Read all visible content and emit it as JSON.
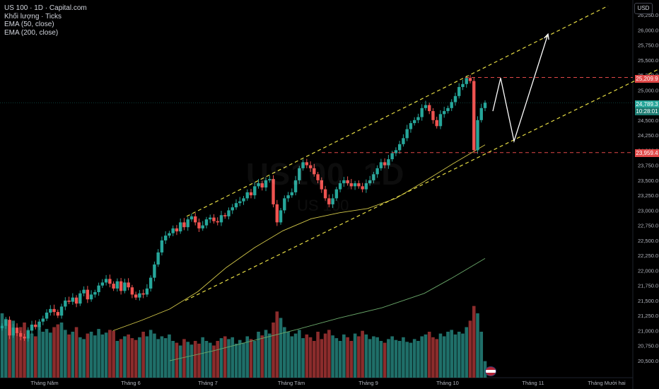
{
  "legend": {
    "symbol_line": "US 100 · 1D · Capital.com",
    "volume_line": "Khối lượng · Ticks",
    "ema50_line": "EMA (50, close)",
    "ema200_line": "EMA (200, close)"
  },
  "currency": "USD",
  "watermark": {
    "symbol": "US100, 1D",
    "name": "US 100"
  },
  "colors": {
    "up": "#26a69a",
    "down": "#ef5350",
    "ema50": "#d4c94a",
    "ema200": "#6aa86a",
    "channel": "#e6dc44",
    "level": "#e04848",
    "projection": "#ffffff"
  },
  "price_labels": {
    "upper_level": "25,209.9",
    "current": "24,789.3",
    "countdown": "10:28:01",
    "lower_level": "23,959.4"
  },
  "chart_data": {
    "type": "candlestick",
    "y_axis_ticks": [
      "20,500.0",
      "20,750.0",
      "21,000.0",
      "21,250.0",
      "21,500.0",
      "21,750.0",
      "22,000.0",
      "22,250.0",
      "22,500.0",
      "22,750.0",
      "23,000.0",
      "23,250.0",
      "23,500.0",
      "23,750.0",
      "24,000.0",
      "24,250.0",
      "24,500.0",
      "24,750.0",
      "25,000.0",
      "25,250.0",
      "25,500.0",
      "25,750.0",
      "26,000.0",
      "26,250.0"
    ],
    "x_axis_ticks": [
      "Tháng Năm",
      "Tháng 6",
      "Tháng 7",
      "Tháng Tám",
      "Tháng 9",
      "Tháng 10",
      "Tháng 11",
      "Tháng Mười hai"
    ],
    "ylim": [
      20400,
      26400
    ],
    "levels": [
      25209.9,
      23959.4
    ],
    "current_price": 24789.3,
    "closes": [
      21080,
      21180,
      20920,
      21050,
      20960,
      20900,
      20870,
      21000,
      21100,
      21060,
      21150,
      21200,
      21300,
      21360,
      21310,
      21250,
      21400,
      21500,
      21480,
      21550,
      21450,
      21620,
      21680,
      21520,
      21600,
      21640,
      21750,
      21800,
      21860,
      21780,
      21700,
      21820,
      21660,
      21800,
      21720,
      21600,
      21550,
      21620,
      21600,
      21700,
      21880,
      22100,
      22300,
      22500,
      22580,
      22620,
      22700,
      22650,
      22800,
      22720,
      22850,
      22900,
      22800,
      22700,
      22750,
      22850,
      22880,
      22820,
      22800,
      22920,
      22900,
      23000,
      23050,
      23120,
      23150,
      23200,
      23300,
      23250,
      23400,
      23450,
      23380,
      23500,
      23520,
      23100,
      22800,
      23000,
      23200,
      23250,
      23300,
      23500,
      23700,
      23800,
      23750,
      23700,
      23600,
      23500,
      23350,
      23200,
      23100,
      23200,
      23350,
      23450,
      23500,
      23450,
      23400,
      23450,
      23400,
      23350,
      23450,
      23500,
      23600,
      23700,
      23800,
      23750,
      23850,
      23950,
      24000,
      24100,
      24200,
      24350,
      24450,
      24500,
      24550,
      24700,
      24750,
      24650,
      24500,
      24400,
      24600,
      24650,
      24700,
      24800,
      24900,
      25050,
      25100,
      25200,
      25150,
      24000,
      24500,
      24700,
      24789
    ],
    "ema50": [
      [
        160,
        21000
      ],
      [
        200,
        21170
      ],
      [
        240,
        21360
      ],
      [
        280,
        21650
      ],
      [
        320,
        22050
      ],
      [
        360,
        22380
      ],
      [
        400,
        22660
      ],
      [
        440,
        22860
      ],
      [
        480,
        22960
      ],
      [
        520,
        23030
      ],
      [
        560,
        23200
      ],
      [
        600,
        23480
      ],
      [
        640,
        23770
      ],
      [
        686,
        24090
      ]
    ],
    "ema200": [
      [
        240,
        20500
      ],
      [
        300,
        20660
      ],
      [
        360,
        20840
      ],
      [
        420,
        21020
      ],
      [
        480,
        21210
      ],
      [
        540,
        21380
      ],
      [
        600,
        21620
      ],
      [
        640,
        21880
      ],
      [
        686,
        22200
      ]
    ],
    "channel": {
      "upper": [
        [
          264,
          22900
        ],
        [
          860,
          26400
        ]
      ],
      "lower": [
        [
          262,
          21500
        ],
        [
          932,
          25350
        ]
      ]
    },
    "projection": [
      [
        697,
        24650
      ],
      [
        708,
        25200
      ],
      [
        727,
        24150
      ],
      [
        775,
        25930
      ]
    ],
    "volume_relative": [
      0.7,
      0.64,
      0.58,
      0.62,
      0.5,
      0.55,
      0.6,
      0.52,
      0.48,
      0.45,
      0.56,
      0.5,
      0.53,
      0.49,
      0.55,
      0.58,
      0.6,
      0.52,
      0.47,
      0.5,
      0.55,
      0.44,
      0.42,
      0.48,
      0.5,
      0.46,
      0.53,
      0.47,
      0.49,
      0.52,
      0.51,
      0.4,
      0.42,
      0.45,
      0.47,
      0.43,
      0.41,
      0.44,
      0.5,
      0.45,
      0.52,
      0.48,
      0.42,
      0.45,
      0.43,
      0.47,
      0.4,
      0.38,
      0.35,
      0.42,
      0.39,
      0.36,
      0.4,
      0.37,
      0.44,
      0.4,
      0.38,
      0.35,
      0.4,
      0.43,
      0.45,
      0.42,
      0.44,
      0.37,
      0.41,
      0.38,
      0.45,
      0.42,
      0.4,
      0.5,
      0.46,
      0.52,
      0.48,
      0.6,
      0.72,
      0.65,
      0.55,
      0.5,
      0.45,
      0.48,
      0.52,
      0.43,
      0.47,
      0.44,
      0.4,
      0.5,
      0.42,
      0.48,
      0.52,
      0.46,
      0.43,
      0.4,
      0.47,
      0.44,
      0.4,
      0.48,
      0.45,
      0.51,
      0.47,
      0.42,
      0.45,
      0.44,
      0.4,
      0.38,
      0.42,
      0.45,
      0.41,
      0.4,
      0.44,
      0.39,
      0.38,
      0.42,
      0.4,
      0.45,
      0.47,
      0.5,
      0.44,
      0.42,
      0.48,
      0.45,
      0.5,
      0.52,
      0.47,
      0.5,
      0.48,
      0.55,
      0.62,
      0.78,
      0.7,
      0.5,
      0.18
    ]
  }
}
